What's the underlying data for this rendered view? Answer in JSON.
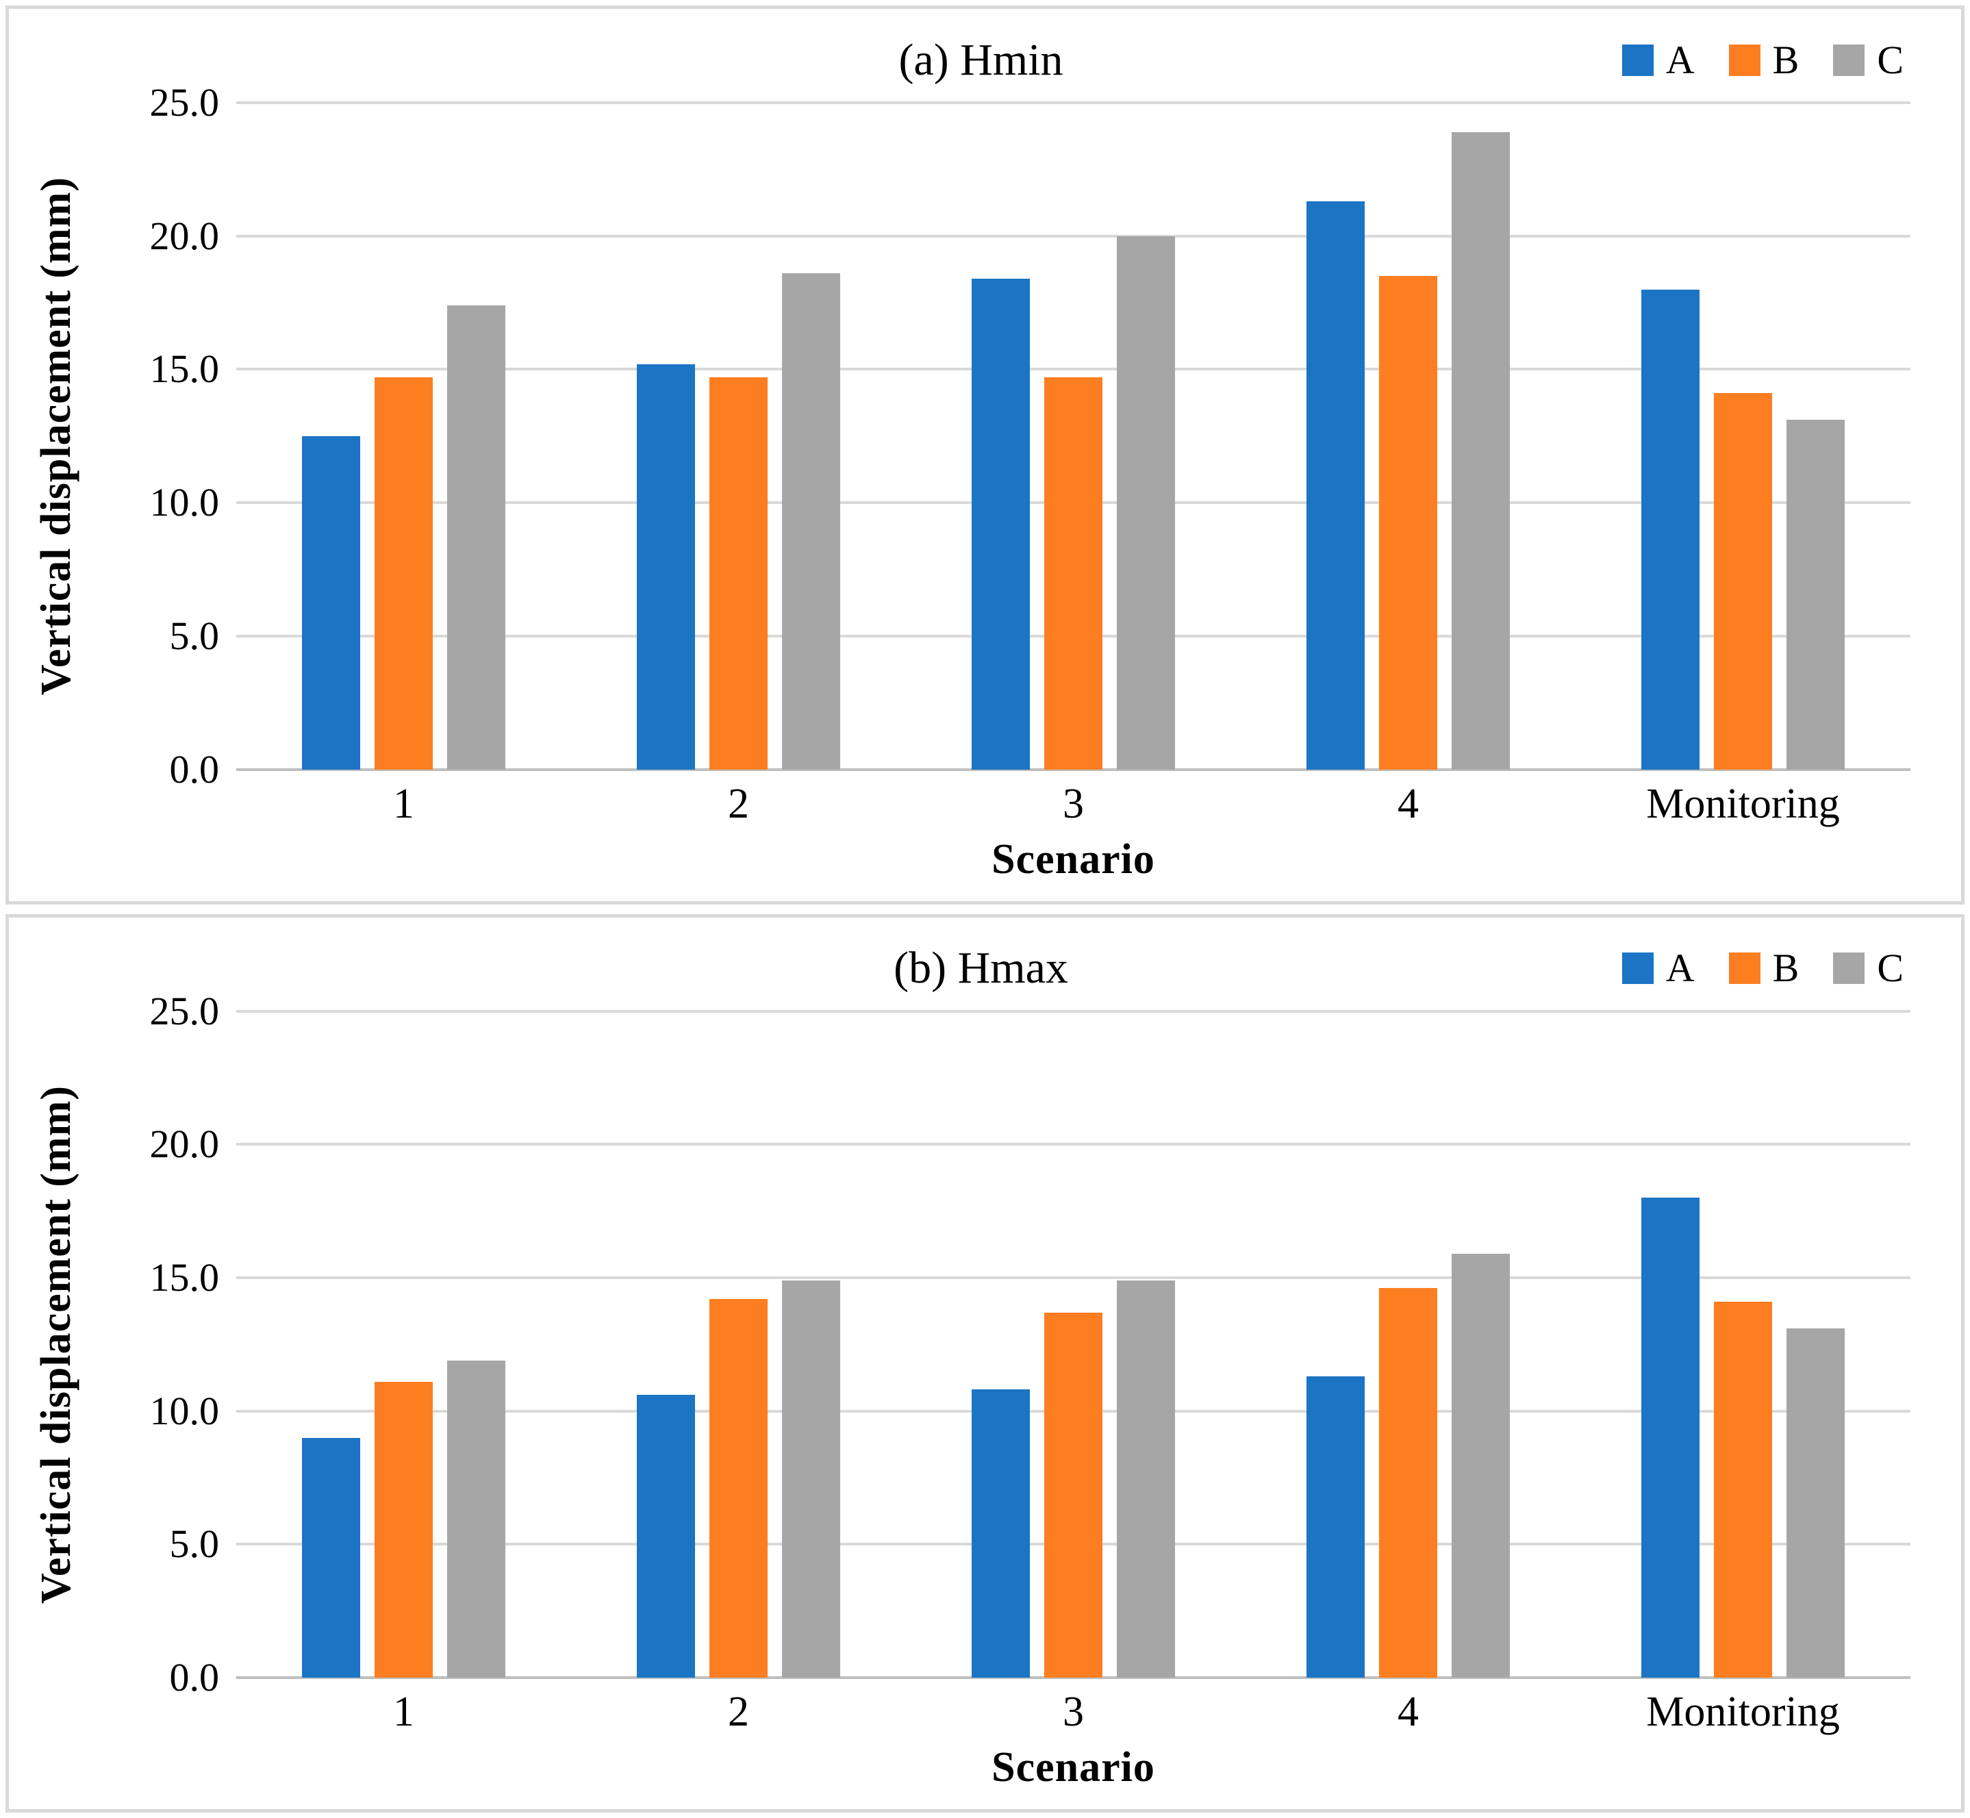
{
  "figure": {
    "background": "#FFFFFF",
    "panel_border_color": "#D9D9D9",
    "gridline_color": "#D9D9D9",
    "axis_line_color": "#BFBFBF"
  },
  "chart_data": [
    {
      "type": "bar",
      "title": "(a) Hmin",
      "xlabel": "Scenario",
      "ylabel": "Vertical displacement (mm)",
      "ylim": [
        0,
        25
      ],
      "ytick_values": [
        0,
        5,
        10,
        15,
        20,
        25
      ],
      "yticks": [
        "0.0",
        "5.0",
        "10.0",
        "15.0",
        "20.0",
        "25.0"
      ],
      "grid": true,
      "legend_position": "top-right",
      "categories": [
        "1",
        "2",
        "3",
        "4",
        "Monitoring"
      ],
      "series": [
        {
          "name": "A",
          "color": "#1B74C4",
          "values": [
            12.5,
            15.2,
            18.4,
            21.3,
            18.0
          ]
        },
        {
          "name": "B",
          "color": "#FC7E21",
          "values": [
            14.7,
            14.7,
            14.7,
            18.5,
            14.1
          ]
        },
        {
          "name": "C",
          "color": "#A6A6A6",
          "values": [
            17.4,
            18.6,
            20.0,
            23.9,
            13.1
          ]
        }
      ]
    },
    {
      "type": "bar",
      "title": "(b) Hmax",
      "xlabel": "Scenario",
      "ylabel": "Vertical displacement (mm)",
      "ylim": [
        0,
        25
      ],
      "ytick_values": [
        0,
        5,
        10,
        15,
        20,
        25
      ],
      "yticks": [
        "0.0",
        "5.0",
        "10.0",
        "15.0",
        "20.0",
        "25.0"
      ],
      "grid": true,
      "legend_position": "top-right",
      "categories": [
        "1",
        "2",
        "3",
        "4",
        "Monitoring"
      ],
      "series": [
        {
          "name": "A",
          "color": "#1B74C4",
          "values": [
            9.0,
            10.6,
            10.8,
            11.3,
            18.0
          ]
        },
        {
          "name": "B",
          "color": "#FC7E21",
          "values": [
            11.1,
            14.2,
            13.7,
            14.6,
            14.1
          ]
        },
        {
          "name": "C",
          "color": "#A6A6A6",
          "values": [
            11.9,
            14.9,
            14.9,
            15.9,
            13.1
          ]
        }
      ]
    }
  ]
}
